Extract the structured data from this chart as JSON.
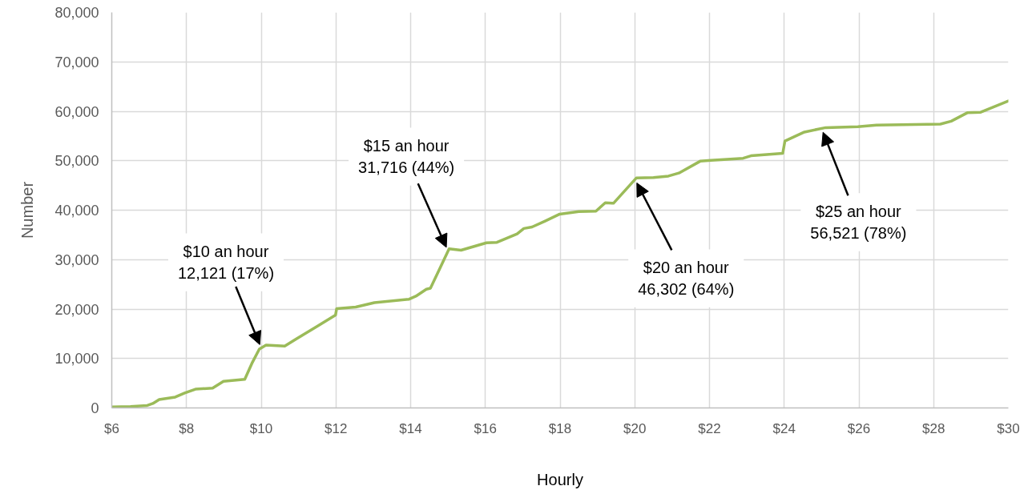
{
  "chart_data": {
    "type": "line",
    "xlabel": "Hourly",
    "ylabel": "Number",
    "xlim": [
      6,
      30
    ],
    "xticks": [
      {
        "value": 6,
        "label": "$6"
      },
      {
        "value": 8,
        "label": "$8"
      },
      {
        "value": 10,
        "label": "$10"
      },
      {
        "value": 12,
        "label": "$12"
      },
      {
        "value": 14,
        "label": "$14"
      },
      {
        "value": 16,
        "label": "$16"
      },
      {
        "value": 18,
        "label": "$18"
      },
      {
        "value": 20,
        "label": "$20"
      },
      {
        "value": 22,
        "label": "$22"
      },
      {
        "value": 24,
        "label": "$24"
      },
      {
        "value": 26,
        "label": "$26"
      },
      {
        "value": 28,
        "label": "$28"
      },
      {
        "value": 30,
        "label": "$30"
      }
    ],
    "ylim": [
      0,
      80000
    ],
    "yticks": [
      0,
      {
        "value": 10000,
        "label": "10,000"
      },
      {
        "value": 20000,
        "label": "20,000"
      },
      {
        "value": 30000,
        "label": "30,000"
      },
      {
        "value": 40000,
        "label": "40,000"
      },
      {
        "value": 50000,
        "label": "50,000"
      },
      {
        "value": 60000,
        "label": "60,000"
      },
      {
        "value": 70000,
        "label": "70,000"
      },
      {
        "value": 80000,
        "label": "80,000"
      }
    ],
    "grid": true,
    "line_style": "solid",
    "x": [
      6.0,
      6.5,
      6.95,
      7.1,
      7.27,
      7.7,
      7.95,
      8.24,
      8.7,
      8.99,
      9.56,
      9.75,
      9.95,
      10.13,
      10.63,
      10.95,
      11.5,
      11.99,
      12.02,
      12.53,
      13.03,
      13.96,
      14.14,
      14.42,
      14.53,
      14.8,
      15.03,
      15.35,
      16.03,
      16.31,
      16.85,
      17.03,
      17.25,
      17.6,
      17.99,
      18.5,
      18.96,
      19.21,
      19.43,
      20.04,
      20.5,
      20.9,
      21.18,
      21.75,
      22.04,
      22.9,
      23.11,
      23.96,
      24.02,
      24.54,
      25.11,
      25.97,
      26.47,
      28.18,
      28.47,
      28.9,
      29.26,
      30.0
    ],
    "series": [
      {
        "color": "#9bbb59",
        "values": [
          200,
          300,
          500,
          900,
          1700,
          2200,
          3000,
          3800,
          4000,
          5400,
          5800,
          9000,
          11900,
          12700,
          12500,
          14000,
          16500,
          18800,
          20100,
          20400,
          21300,
          22000,
          22600,
          24000,
          24200,
          28500,
          32200,
          31900,
          33400,
          33500,
          35200,
          36300,
          36600,
          37800,
          39200,
          39700,
          39800,
          41500,
          41400,
          46500,
          46600,
          46900,
          47500,
          49900,
          50100,
          50500,
          51000,
          51500,
          54000,
          55800,
          56700,
          56900,
          57200,
          57400,
          58000,
          59700,
          59800,
          62100
        ]
      }
    ],
    "annotations": [
      {
        "text": "$10 an hour\n12,121 (17%)",
        "x": 10,
        "y": 12121
      },
      {
        "text": "$15 an hour\n31,716 (44%)",
        "x": 15,
        "y": 31716
      },
      {
        "text": "$20 an hour\n46,302 (64%)",
        "x": 20,
        "y": 46302
      },
      {
        "text": "$25 an hour\n56,521 (78%)",
        "x": 25,
        "y": 56521
      }
    ]
  }
}
